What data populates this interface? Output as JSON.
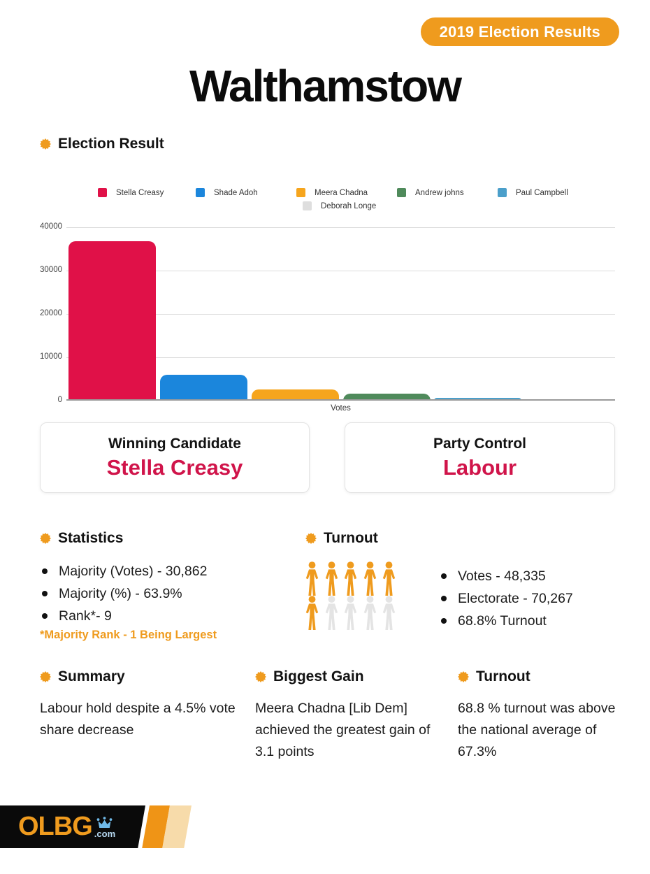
{
  "badge": {
    "label": "2019 Election Results"
  },
  "title": "Walthamstow",
  "chart": {
    "heading": "Election Result"
  },
  "chart_data": {
    "type": "bar",
    "title": "Election Result",
    "categories": [
      "Stella Creasy",
      "Shade Adoh",
      "Meera Chadna",
      "Andrew johns",
      "Paul Campbell",
      "Deborah Longe"
    ],
    "values": [
      36784,
      5922,
      2650,
      1600,
      680,
      120
    ],
    "colors": [
      "#e01148",
      "#1b86dc",
      "#f6a51d",
      "#4f8a5b",
      "#4b9fca",
      "#dedede"
    ],
    "xlabel": "Votes",
    "ylabel": "",
    "ylim": [
      0,
      40000
    ],
    "yticks": [
      0,
      10000,
      20000,
      30000,
      40000
    ],
    "grid": true,
    "legend_position": "top"
  },
  "cards": [
    {
      "label": "Winning Candidate",
      "value": "Stella Creasy"
    },
    {
      "label": "Party Control",
      "value": "Labour"
    }
  ],
  "statistics": {
    "heading": "Statistics",
    "items": [
      "Majority (Votes) - 30,862",
      "Majority (%) - 63.9%",
      "Rank*- 9"
    ],
    "note": "*Majority Rank - 1 Being Largest"
  },
  "turnout": {
    "heading": "Turnout",
    "items": [
      "Votes - 48,335",
      "Electorate - 70,267",
      "68.8% Turnout"
    ],
    "pictogram": {
      "total": 10,
      "filled": 6
    }
  },
  "summary": {
    "heading": "Summary",
    "text": "Labour hold despite a 4.5% vote share decrease"
  },
  "biggest_gain": {
    "heading": "Biggest Gain",
    "text": "Meera Chadna [Lib Dem] achieved the greatest gain of 3.1 points"
  },
  "turnout_note": {
    "heading": "Turnout",
    "text": "68.8 % turnout was above the national average of 67.3%"
  },
  "footer": {
    "logo": "OLBG",
    "logo_suffix": ".com"
  },
  "colors": {
    "accent_orange": "#ef9b1e",
    "crimson": "#d0144a",
    "bar_red": "#e01148",
    "bar_blue": "#1b86dc",
    "bar_orange": "#f6a51d",
    "bar_green": "#4f8a5b",
    "bar_lightblue": "#4b9fca",
    "bar_gray": "#dedede",
    "stripe_orange": "#ef9416",
    "stripe_cream": "#f7dbaa",
    "logo_blue": "#6fb9e8"
  }
}
